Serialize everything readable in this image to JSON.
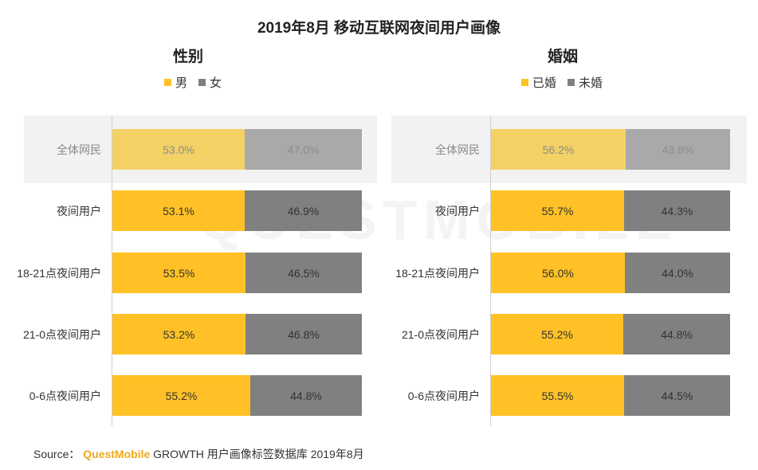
{
  "title": "2019年8月 移动互联网夜间用户画像",
  "colors": {
    "primary": "#FFC125",
    "secondary": "#808080",
    "primary_dim": "#F3D165",
    "secondary_dim": "#A9A9A9",
    "highlight_bg": "#F2F2F2"
  },
  "watermark": "QUESTMOBILE",
  "source": {
    "prefix": "Source：",
    "brand": "QuestMobile",
    "suffix": "GROWTH 用户画像标签数据库 2019年8月"
  },
  "chart_data": [
    {
      "type": "bar",
      "stacked": true,
      "orientation": "horizontal",
      "percent": true,
      "title": "性别",
      "legend_position": "top",
      "categories": [
        "全体网民",
        "夜间用户",
        "18-21点夜间用户",
        "21-0点夜间用户",
        "0-6点夜间用户"
      ],
      "highlight_category": "全体网民",
      "series": [
        {
          "name": "男",
          "values": [
            53.0,
            53.1,
            53.5,
            53.2,
            55.2
          ]
        },
        {
          "name": "女",
          "values": [
            47.0,
            46.9,
            46.5,
            46.8,
            44.8
          ]
        }
      ],
      "xlim": [
        0,
        100
      ]
    },
    {
      "type": "bar",
      "stacked": true,
      "orientation": "horizontal",
      "percent": true,
      "title": "婚姻",
      "legend_position": "top",
      "categories": [
        "全体网民",
        "夜间用户",
        "18-21点夜间用户",
        "21-0点夜间用户",
        "0-6点夜间用户"
      ],
      "highlight_category": "全体网民",
      "series": [
        {
          "name": "已婚",
          "values": [
            56.2,
            55.7,
            56.0,
            55.2,
            55.5
          ]
        },
        {
          "name": "未婚",
          "values": [
            43.8,
            44.3,
            44.0,
            44.8,
            44.5
          ]
        }
      ],
      "xlim": [
        0,
        100
      ]
    }
  ]
}
